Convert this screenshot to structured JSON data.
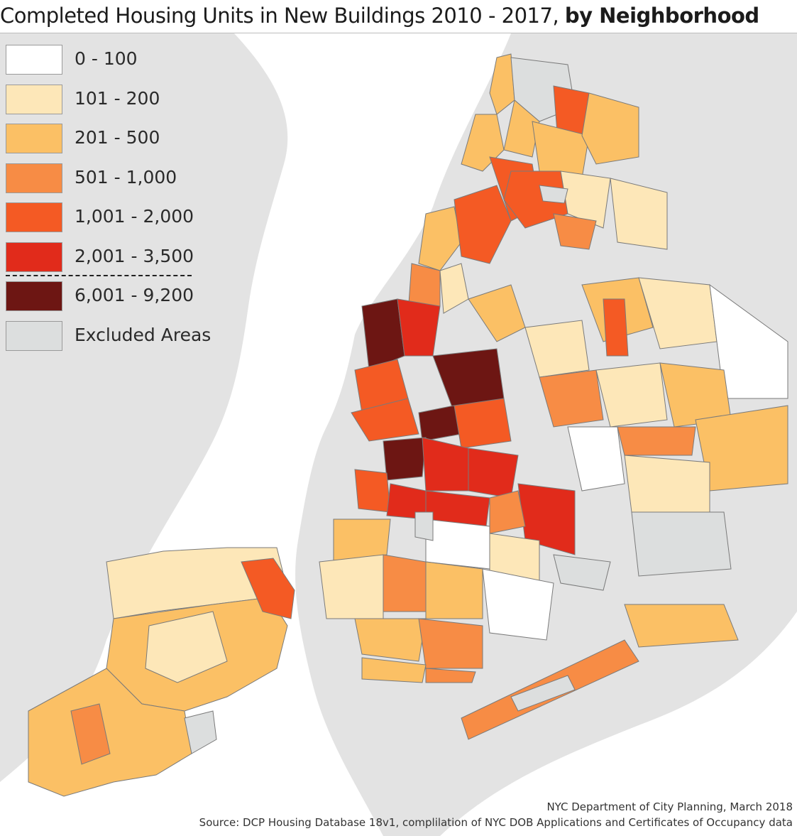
{
  "title_regular": "Completed Housing Units in New Buildings 2010 - 2017,",
  "title_bold": "by Neighborhood",
  "legend": [
    {
      "label": "0 - 100",
      "color": "#ffffff"
    },
    {
      "label": "101 - 200",
      "color": "#fde7b8"
    },
    {
      "label": "201 - 500",
      "color": "#fbc065"
    },
    {
      "label": "501 - 1,000",
      "color": "#f78c45"
    },
    {
      "label": "1,001 - 2,000",
      "color": "#f45a24"
    },
    {
      "label": "2,001 - 3,500",
      "color": "#e12b1b"
    },
    {
      "label": "6,001 - 9,200",
      "color": "#6d1613"
    },
    {
      "label": "Excluded Areas",
      "color": "#dcdede"
    }
  ],
  "credits": {
    "line1": "NYC Department of City Planning, March 2018",
    "line2": "Source: DCP Housing Database 18v1, complilation of NYC DOB Applications and Certificates of Occupancy data"
  },
  "colors": {
    "water": "#ffffff",
    "land_outside": "#e3e3e3",
    "border": "#7a7a7a"
  }
}
